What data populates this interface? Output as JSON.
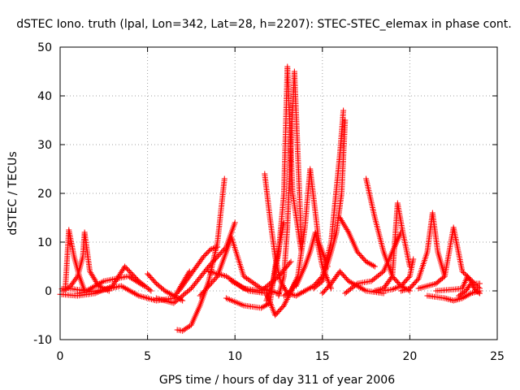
{
  "chart_data": {
    "type": "scatter",
    "title": "dSTEC Iono. truth (lpal, Lon=342, Lat=28, h=2207): STEC-STEC_elemax in phase cont.",
    "xlabel": "GPS time / hours of day 311 of year 2006",
    "ylabel": "dSTEC  / TECUs",
    "xlim": [
      0,
      25
    ],
    "ylim": [
      -10,
      50
    ],
    "xticks": [
      0,
      5,
      10,
      15,
      20,
      25
    ],
    "yticks": [
      -10,
      0,
      10,
      20,
      30,
      40,
      50
    ],
    "xtick_labels": [
      "0",
      "5",
      "10",
      "15",
      "20",
      "25"
    ],
    "ytick_labels": [
      "-10",
      "0",
      "10",
      "20",
      "30",
      "40",
      "50"
    ],
    "grid": true,
    "marker": "+",
    "color": "#ff0000",
    "series": [
      {
        "x": [
          0.1,
          0.3,
          0.5,
          0.8,
          1.1,
          1.4
        ],
        "y": [
          0.4,
          0.5,
          12.5,
          7.0,
          3.0,
          0.0
        ]
      },
      {
        "x": [
          0.2,
          0.6,
          1.0,
          1.3,
          1.4,
          1.7,
          2.2,
          2.8
        ],
        "y": [
          0.0,
          1.0,
          3.0,
          7.0,
          12.0,
          4.0,
          1.0,
          0.0
        ]
      },
      {
        "x": [
          0.0,
          1.0,
          2.0,
          3.0,
          3.7,
          4.5,
          5.2
        ],
        "y": [
          -0.7,
          -1.0,
          -0.5,
          1.0,
          5.0,
          2.0,
          0.0
        ]
      },
      {
        "x": [
          0.5,
          1.5,
          2.5,
          3.2,
          3.9,
          4.8
        ],
        "y": [
          0.5,
          0.0,
          2.0,
          2.5,
          3.0,
          1.0
        ]
      },
      {
        "x": [
          1.0,
          2.5,
          3.5,
          4.5,
          5.5,
          6.5,
          7.4
        ],
        "y": [
          -0.5,
          0.2,
          1.0,
          -1.0,
          -2.0,
          -1.5,
          4.0
        ]
      },
      {
        "x": [
          5.0,
          5.5,
          6.0,
          6.5,
          7.0
        ],
        "y": [
          3.5,
          1.5,
          0.0,
          -1.0,
          -2.0
        ]
      },
      {
        "x": [
          6.7,
          7.0,
          7.5,
          8.0,
          8.5,
          9.0,
          9.4
        ],
        "y": [
          -8.0,
          -8.2,
          -7.0,
          -3.0,
          2.0,
          10.0,
          23.0
        ]
      },
      {
        "x": [
          6.8,
          7.2,
          7.8,
          8.2,
          8.6,
          9.0
        ],
        "y": [
          0.0,
          2.0,
          5.0,
          7.0,
          8.5,
          9.0
        ]
      },
      {
        "x": [
          5.5,
          6.5,
          7.5,
          8.5,
          9.5,
          10.0
        ],
        "y": [
          -1.5,
          -2.5,
          0.5,
          5.0,
          9.0,
          14.0
        ]
      },
      {
        "x": [
          8.0,
          9.0,
          9.8,
          10.5,
          11.5,
          12.5
        ],
        "y": [
          -1.0,
          3.0,
          11.0,
          3.0,
          0.5,
          -0.5
        ]
      },
      {
        "x": [
          8.5,
          9.5,
          10.5,
          11.5,
          12.5,
          13.2
        ],
        "y": [
          4.0,
          3.0,
          0.5,
          0.0,
          3.0,
          6.0
        ]
      },
      {
        "x": [
          9.5,
          10.5,
          11.5,
          12.0,
          12.3,
          12.8
        ],
        "y": [
          -1.5,
          -3.0,
          -3.5,
          -2.5,
          5.0,
          14.0
        ]
      },
      {
        "x": [
          9.8,
          10.8,
          11.8,
          12.3,
          12.8,
          13.5
        ],
        "y": [
          2.0,
          0.0,
          -0.5,
          -5.0,
          -3.0,
          2.0
        ]
      },
      {
        "x": [
          11.7,
          12.0,
          12.3,
          12.6,
          13.0,
          13.5,
          14.0
        ],
        "y": [
          24.0,
          15.0,
          7.0,
          2.0,
          -0.5,
          -1.0,
          0.0
        ]
      },
      {
        "x": [
          11.8,
          12.2,
          12.5,
          12.8,
          13.0,
          13.3,
          13.8
        ],
        "y": [
          -2.0,
          2.0,
          8.0,
          20.0,
          46.0,
          20.0,
          8.0
        ]
      },
      {
        "x": [
          12.5,
          12.8,
          13.0,
          13.2,
          13.4,
          13.8
        ],
        "y": [
          -1.0,
          3.0,
          13.0,
          30.0,
          45.0,
          10.0
        ]
      },
      {
        "x": [
          12.8,
          13.2,
          13.6,
          14.0,
          14.3,
          14.8,
          15.3
        ],
        "y": [
          -1.0,
          0.0,
          3.0,
          13.0,
          25.0,
          10.0,
          5.0
        ]
      },
      {
        "x": [
          13.5,
          14.0,
          14.3,
          14.6,
          15.0,
          15.5
        ],
        "y": [
          1.0,
          5.0,
          8.0,
          12.0,
          5.0,
          0.5
        ]
      },
      {
        "x": [
          14.0,
          14.5,
          15.0,
          15.5,
          16.0,
          16.2
        ],
        "y": [
          0.0,
          1.0,
          3.0,
          10.0,
          28.0,
          37.0
        ]
      },
      {
        "x": [
          14.5,
          15.0,
          15.5,
          15.8,
          16.1,
          16.3
        ],
        "y": [
          0.5,
          2.0,
          8.0,
          12.0,
          20.0,
          35.0
        ]
      },
      {
        "x": [
          15.0,
          15.5,
          16.0,
          16.5,
          17.0,
          17.5,
          18.5
        ],
        "y": [
          -0.5,
          1.5,
          4.0,
          2.0,
          1.0,
          0.0,
          -0.5
        ]
      },
      {
        "x": [
          16.0,
          16.5,
          17.0,
          17.5,
          18.0
        ],
        "y": [
          15.0,
          12.0,
          8.0,
          6.0,
          5.0
        ]
      },
      {
        "x": [
          16.3,
          17.0,
          17.8,
          18.5,
          19.0,
          19.5
        ],
        "y": [
          -0.5,
          1.5,
          2.0,
          4.0,
          8.0,
          12.0
        ]
      },
      {
        "x": [
          17.5,
          18.0,
          18.5,
          19.0,
          19.5,
          20.0
        ],
        "y": [
          23.0,
          15.0,
          8.0,
          3.0,
          1.0,
          0.0
        ]
      },
      {
        "x": [
          18.0,
          18.5,
          19.0,
          19.3,
          19.6,
          20.0
        ],
        "y": [
          0.0,
          0.5,
          3.0,
          18.0,
          12.0,
          5.0
        ]
      },
      {
        "x": [
          18.5,
          19.0,
          19.5,
          20.0,
          20.2
        ],
        "y": [
          0.0,
          0.3,
          1.0,
          3.0,
          6.5
        ]
      },
      {
        "x": [
          19.5,
          20.0,
          20.5,
          21.0,
          21.3,
          21.6,
          22.0
        ],
        "y": [
          0.0,
          0.5,
          2.5,
          8.0,
          16.0,
          8.0,
          3.0
        ]
      },
      {
        "x": [
          20.5,
          21.5,
          22.0,
          22.5,
          23.0,
          24.0
        ],
        "y": [
          0.5,
          1.5,
          3.0,
          13.0,
          4.0,
          0.5
        ]
      },
      {
        "x": [
          21.0,
          22.0,
          22.5,
          23.0,
          23.5,
          24.0
        ],
        "y": [
          -1.0,
          -1.5,
          -2.0,
          -1.5,
          -0.5,
          0.0
        ]
      },
      {
        "x": [
          21.5,
          22.5,
          23.0,
          23.3,
          23.6,
          24.0
        ],
        "y": [
          0.0,
          0.3,
          0.5,
          3.0,
          1.5,
          1.5
        ]
      },
      {
        "x": [
          22.8,
          23.2,
          23.5,
          23.8,
          24.0
        ],
        "y": [
          -1.0,
          0.0,
          1.5,
          0.0,
          -0.5
        ]
      }
    ]
  }
}
